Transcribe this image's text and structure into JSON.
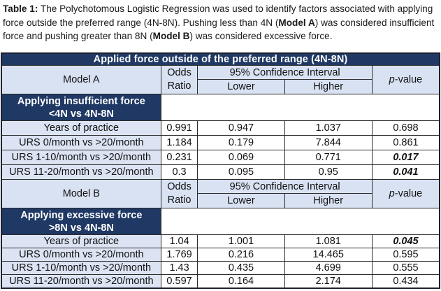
{
  "colors": {
    "header_navy": "#1f3864",
    "header_light_blue": "#d9e2f3",
    "label_light_blue": "#dce4f4",
    "border": "#2b2b2b"
  },
  "caption": {
    "label": "Table 1:",
    "seg1": " The Polychotomous Logistic Regression was used to identify factors associated with applying force outside the preferred range (4N-8N). Pushing less than 4N (",
    "model_a_bold": "Model A",
    "seg2": ") was considered insufficient force and pushing greater than 8N (",
    "model_b_bold": "Model B",
    "seg3": ") was considered excessive force."
  },
  "table": {
    "title": "Applied force outside of the preferred range (4N-8N)",
    "headers": {
      "odds_line1": "Odds",
      "odds_line2": "Ratio",
      "ci": "95% Confidence Interval",
      "lower": "Lower",
      "higher": "Higher",
      "p_italic": "p",
      "p_rest": "-value"
    },
    "model_a": {
      "name": "Model A",
      "section_line1": "Applying insufficient force",
      "section_line2": "<4N vs 4N-8N",
      "rows": [
        {
          "label": "Years of practice",
          "or": "0.991",
          "lower": "0.947",
          "higher": "1.037",
          "p": "0.698",
          "sig": false
        },
        {
          "label": "URS 0/month vs >20/month",
          "or": "1.184",
          "lower": "0.179",
          "higher": "7.844",
          "p": "0.861",
          "sig": false
        },
        {
          "label": "URS 1-10/month vs >20/month",
          "or": "0.231",
          "lower": "0.069",
          "higher": "0.771",
          "p": "0.017",
          "sig": true
        },
        {
          "label": "URS 11-20/month vs >20/month",
          "or": "0.3",
          "lower": "0.095",
          "higher": "0.95",
          "p": "0.041",
          "sig": true
        }
      ]
    },
    "model_b": {
      "name": "Model B",
      "section_line1": "Applying excessive force",
      "section_line2": ">8N vs 4N-8N",
      "rows": [
        {
          "label": "Years of practice",
          "or": "1.04",
          "lower": "1.001",
          "higher": "1.081",
          "p": "0.045",
          "sig": true
        },
        {
          "label": "URS 0/month vs >20/month",
          "or": "1.769",
          "lower": "0.216",
          "higher": "14.465",
          "p": "0.595",
          "sig": false
        },
        {
          "label": "URS 1-10/month vs >20/month",
          "or": "1.43",
          "lower": "0.435",
          "higher": "4.699",
          "p": "0.555",
          "sig": false
        },
        {
          "label": "URS 11-20/month vs >20/month",
          "or": "0.597",
          "lower": "0.164",
          "higher": "2.174",
          "p": "0.434",
          "sig": false
        }
      ]
    }
  }
}
